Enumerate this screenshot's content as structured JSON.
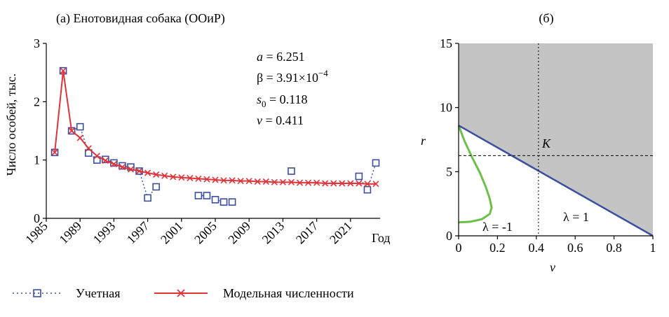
{
  "chart_data": [
    {
      "type": "line",
      "title": "(а) Енотовидная собака (ООиР)",
      "xlabel": "Год",
      "ylabel": "Число особей, тыс.",
      "xlim": [
        1985,
        2024.5
      ],
      "ylim": [
        0,
        3
      ],
      "x_ticks": [
        "1985",
        "1989",
        "1993",
        "1997",
        "2001",
        "2005",
        "2009",
        "2013",
        "2017",
        "2021"
      ],
      "y_ticks": [
        "0",
        "1",
        "2",
        "3"
      ],
      "legend": {
        "placement": "bottom",
        "entries": [
          "Учетная",
          "Модельная численности"
        ]
      },
      "series": [
        {
          "name": "Учетная",
          "color": "#3a4fa0",
          "style": "dotted-square",
          "points": [
            [
              1986,
              1.13
            ],
            [
              1987,
              2.53
            ],
            [
              1988,
              1.5
            ],
            [
              1989,
              1.57
            ],
            [
              1990,
              1.12
            ],
            [
              1991,
              1.0
            ],
            [
              1992,
              1.01
            ],
            [
              1993,
              0.95
            ],
            [
              1994,
              0.9
            ],
            [
              1995,
              0.88
            ],
            [
              1996,
              0.81
            ],
            [
              1997,
              0.35
            ],
            [
              1998,
              0.54
            ],
            [
              2003,
              0.39
            ],
            [
              2004,
              0.39
            ],
            [
              2005,
              0.32
            ],
            [
              2006,
              0.28
            ],
            [
              2007,
              0.28
            ],
            [
              2014,
              0.81
            ],
            [
              2022,
              0.72
            ],
            [
              2023,
              0.49
            ],
            [
              2024,
              0.95
            ]
          ]
        },
        {
          "name": "Модельная численности",
          "color": "#e0343a",
          "style": "solid-x",
          "x": [
            1986,
            1987,
            1988,
            1989,
            1990,
            1991,
            1992,
            1993,
            1994,
            1995,
            1996,
            1997,
            1998,
            1999,
            2000,
            2001,
            2002,
            2003,
            2004,
            2005,
            2006,
            2007,
            2008,
            2009,
            2010,
            2011,
            2012,
            2013,
            2014,
            2015,
            2016,
            2017,
            2018,
            2019,
            2020,
            2021,
            2022,
            2023,
            2024
          ],
          "y": [
            1.13,
            2.53,
            1.5,
            1.38,
            1.2,
            1.07,
            0.99,
            0.93,
            0.88,
            0.84,
            0.81,
            0.78,
            0.75,
            0.73,
            0.71,
            0.7,
            0.69,
            0.68,
            0.67,
            0.66,
            0.65,
            0.65,
            0.64,
            0.64,
            0.63,
            0.63,
            0.62,
            0.62,
            0.62,
            0.61,
            0.61,
            0.61,
            0.6,
            0.6,
            0.6,
            0.6,
            0.6,
            0.59,
            0.59
          ]
        }
      ],
      "annotations": {
        "a": "a = 6.251",
        "beta": "β  = 3.91×10",
        "beta_exp": "−4",
        "s0_prefix": "s",
        "s0_sub": "0",
        "s0_value": " = 0.118",
        "v": "v = 0.411"
      }
    },
    {
      "type": "area",
      "title": "(б)",
      "xlabel": "v",
      "ylabel": "r",
      "xlim": [
        0,
        1
      ],
      "ylim": [
        0,
        15
      ],
      "x_ticks": [
        "0",
        "0.2",
        "0.4",
        "0.6",
        "0.8",
        "1"
      ],
      "y_ticks": [
        "0",
        "5",
        "10",
        "15"
      ],
      "grid": false,
      "shaded_region": "above line",
      "boundary_line": {
        "color": "#3a4fa0",
        "points": [
          [
            0,
            8.6
          ],
          [
            1,
            0
          ]
        ]
      },
      "lambda_minus_one_curve": {
        "color": "#6cc04a",
        "points": [
          [
            0,
            8.6
          ],
          [
            0.03,
            7.4
          ],
          [
            0.07,
            6.1
          ],
          [
            0.11,
            4.9
          ],
          [
            0.14,
            3.8
          ],
          [
            0.16,
            2.9
          ],
          [
            0.17,
            2.2
          ],
          [
            0.16,
            1.7
          ],
          [
            0.12,
            1.3
          ],
          [
            0.06,
            1.1
          ],
          [
            0,
            1.05
          ]
        ]
      },
      "reference_lines": {
        "v": 0.411,
        "r": 6.25
      },
      "labels": {
        "K": "K",
        "lambda_minus": "λ = -1",
        "lambda_plus": "λ = 1"
      }
    }
  ]
}
